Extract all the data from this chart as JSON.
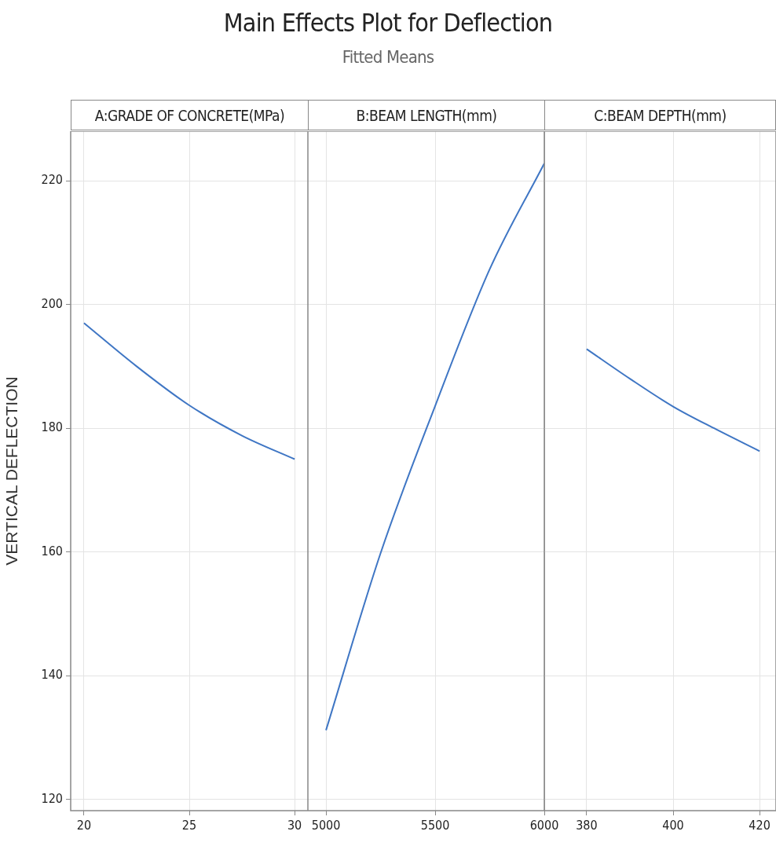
{
  "chart_data": [
    {
      "type": "line",
      "title": "A:GRADE OF CONCRETE(MPa)",
      "annotations": [
        "Main Effects Plot for Deflection",
        "Fitted Means"
      ],
      "ylabel": "VERTICAL DEFLECTION",
      "x": [
        20,
        22.5,
        25,
        27.5,
        30
      ],
      "series": [
        {
          "color": "#3f76c4",
          "values": [
            197.0,
            190.0,
            183.7,
            178.8,
            175.0
          ]
        }
      ],
      "xlim": [
        19.37,
        30.63
      ],
      "xticks": [
        20,
        25,
        30
      ],
      "ylim": [
        118.2,
        228
      ],
      "yticks": [
        120,
        140,
        160,
        180,
        200,
        220
      ],
      "grid": true,
      "marker": "none"
    },
    {
      "type": "line",
      "title": "B:BEAM LENGTH(mm)",
      "x": [
        5000,
        5250,
        5500,
        5750,
        6000
      ],
      "series": [
        {
          "color": "#3f76c4",
          "values": [
            131.2,
            159.8,
            183.6,
            205.7,
            222.8
          ]
        }
      ],
      "xlim": [
        4917,
        6000
      ],
      "xticks": [
        5000,
        5500,
        6000
      ],
      "ylim": [
        118.2,
        228
      ],
      "yticks": [
        120,
        140,
        160,
        180,
        200,
        220
      ],
      "grid": true,
      "marker": "none",
      "tick_labels": "x"
    },
    {
      "type": "line",
      "title": "C:BEAM DEPTH(mm)",
      "x": [
        380,
        390,
        400,
        410,
        420
      ],
      "series": [
        {
          "color": "#3f76c4",
          "values": [
            192.8,
            188.0,
            183.5,
            179.8,
            176.3
          ]
        }
      ],
      "xlim": [
        370.2,
        423.8
      ],
      "xticks": [
        380,
        400,
        420
      ],
      "ylim": [
        118.2,
        228
      ],
      "yticks": [
        120,
        140,
        160,
        180,
        200,
        220
      ],
      "grid": true,
      "marker": "none",
      "tick_labels": "x"
    }
  ]
}
